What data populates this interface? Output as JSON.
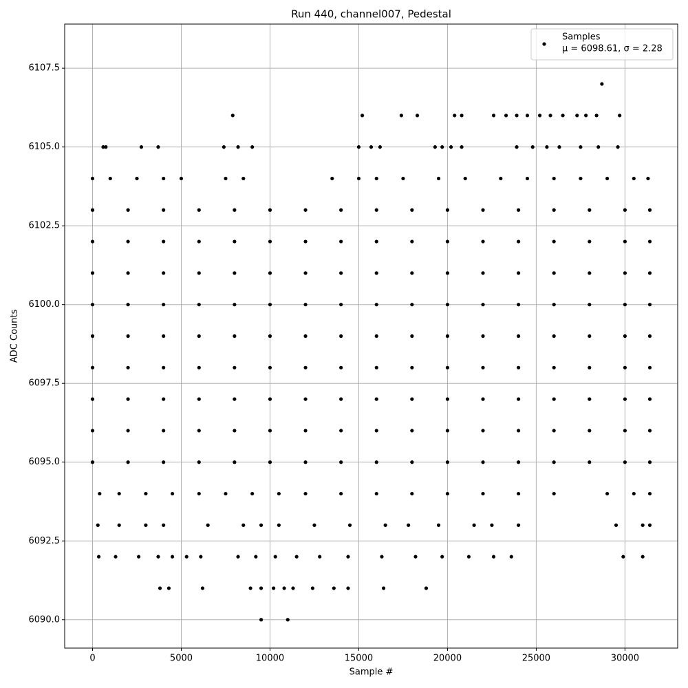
{
  "chart_data": {
    "type": "scatter",
    "title": "Run 440, channel007, Pedestal",
    "x_label": "Sample #",
    "y_label": "ADC Counts",
    "grid": true,
    "legend_position": "upper right",
    "legend_note": "μ = 6098.61, σ = 2.28",
    "xlim": [
      -1570,
      32970
    ],
    "ylim": [
      6089.1,
      6108.9
    ],
    "xticks": [
      0,
      5000,
      10000,
      15000,
      20000,
      25000,
      30000
    ],
    "yticks": [
      {
        "value": 6090,
        "label": "6090.0"
      },
      {
        "value": 6092.5,
        "label": "6092.5"
      },
      {
        "value": 6095,
        "label": "6095.0"
      },
      {
        "value": 6097.5,
        "label": "6097.5"
      },
      {
        "value": 6100,
        "label": "6100.0"
      },
      {
        "value": 6102.5,
        "label": "6102.5"
      },
      {
        "value": 6105,
        "label": "6105.0"
      },
      {
        "value": 6107.5,
        "label": "6107.5"
      }
    ],
    "series": [
      {
        "name": "Samples",
        "color": "#000000",
        "x": [
          0,
          2000,
          4000,
          6000,
          8000,
          10000,
          12000,
          14000,
          16000,
          18000,
          20000,
          22000,
          24000,
          26000,
          28000,
          30000,
          31400,
          0,
          2000,
          4000,
          6000,
          8000,
          10000,
          12000,
          14000,
          16000,
          18000,
          20000,
          22000,
          24000,
          26000,
          28000,
          30000,
          31400,
          0,
          2000,
          4000,
          6000,
          8000,
          10000,
          12000,
          14000,
          16000,
          18000,
          20000,
          22000,
          24000,
          26000,
          28000,
          30000,
          31400,
          0,
          2000,
          4000,
          6000,
          8000,
          10000,
          12000,
          14000,
          16000,
          18000,
          20000,
          22000,
          24000,
          26000,
          28000,
          30000,
          31400,
          0,
          2000,
          4000,
          6000,
          8000,
          10000,
          12000,
          14000,
          16000,
          18000,
          20000,
          22000,
          24000,
          26000,
          28000,
          30000,
          31400,
          0,
          2000,
          4000,
          6000,
          8000,
          10000,
          12000,
          14000,
          16000,
          18000,
          20000,
          22000,
          24000,
          26000,
          28000,
          30000,
          31400,
          0,
          2000,
          4000,
          6000,
          8000,
          10000,
          12000,
          14000,
          16000,
          18000,
          20000,
          22000,
          24000,
          26000,
          28000,
          30000,
          31400,
          0,
          2000,
          4000,
          6000,
          8000,
          10000,
          12000,
          14000,
          16000,
          18000,
          20000,
          22000,
          24000,
          26000,
          28000,
          30000,
          31400,
          0,
          2000,
          4000,
          6000,
          8000,
          10000,
          12000,
          14000,
          16000,
          18000,
          20000,
          22000,
          24000,
          26000,
          28000,
          30000,
          31400,
          0,
          1000,
          2500,
          4000,
          5000,
          7500,
          8500,
          13500,
          15000,
          16000,
          17500,
          19500,
          21000,
          23000,
          24500,
          26000,
          27500,
          29000,
          30500,
          31300,
          400,
          1500,
          3000,
          4500,
          6000,
          7500,
          9000,
          10500,
          12000,
          14000,
          16000,
          18000,
          20000,
          22000,
          24000,
          26000,
          29000,
          30500,
          31400,
          300,
          1500,
          3000,
          4000,
          6500,
          8500,
          9500,
          10500,
          12500,
          14500,
          16500,
          17800,
          19500,
          21500,
          22500,
          24000,
          29500,
          31000,
          31400,
          350,
          1300,
          2600,
          3700,
          4500,
          5300,
          6100,
          8200,
          9200,
          10300,
          11500,
          12800,
          14400,
          16300,
          18200,
          19700,
          21200,
          22600,
          23600,
          29900,
          31000,
          3800,
          4300,
          6200,
          8900,
          9500,
          10200,
          10800,
          11300,
          12400,
          13600,
          14400,
          16400,
          18800,
          9500,
          11000,
          600,
          750,
          2750,
          3700,
          7400,
          8200,
          9000,
          15000,
          15700,
          16200,
          19300,
          19700,
          20200,
          20800,
          23900,
          24800,
          25600,
          26300,
          27500,
          28500,
          29600,
          7900,
          15200,
          17400,
          18300,
          20400,
          20800,
          22600,
          23300,
          23900,
          24500,
          25200,
          25800,
          26500,
          27300,
          27800,
          28400,
          29700,
          28700
        ],
        "values": [
          6095,
          6095,
          6095,
          6095,
          6095,
          6095,
          6095,
          6095,
          6095,
          6095,
          6095,
          6095,
          6095,
          6095,
          6095,
          6095,
          6095,
          6096,
          6096,
          6096,
          6096,
          6096,
          6096,
          6096,
          6096,
          6096,
          6096,
          6096,
          6096,
          6096,
          6096,
          6096,
          6096,
          6096,
          6097,
          6097,
          6097,
          6097,
          6097,
          6097,
          6097,
          6097,
          6097,
          6097,
          6097,
          6097,
          6097,
          6097,
          6097,
          6097,
          6097,
          6098,
          6098,
          6098,
          6098,
          6098,
          6098,
          6098,
          6098,
          6098,
          6098,
          6098,
          6098,
          6098,
          6098,
          6098,
          6098,
          6098,
          6099,
          6099,
          6099,
          6099,
          6099,
          6099,
          6099,
          6099,
          6099,
          6099,
          6099,
          6099,
          6099,
          6099,
          6099,
          6099,
          6099,
          6100,
          6100,
          6100,
          6100,
          6100,
          6100,
          6100,
          6100,
          6100,
          6100,
          6100,
          6100,
          6100,
          6100,
          6100,
          6100,
          6100,
          6101,
          6101,
          6101,
          6101,
          6101,
          6101,
          6101,
          6101,
          6101,
          6101,
          6101,
          6101,
          6101,
          6101,
          6101,
          6101,
          6101,
          6102,
          6102,
          6102,
          6102,
          6102,
          6102,
          6102,
          6102,
          6102,
          6102,
          6102,
          6102,
          6102,
          6102,
          6102,
          6102,
          6102,
          6103,
          6103,
          6103,
          6103,
          6103,
          6103,
          6103,
          6103,
          6103,
          6103,
          6103,
          6103,
          6103,
          6103,
          6103,
          6103,
          6103,
          6104,
          6104,
          6104,
          6104,
          6104,
          6104,
          6104,
          6104,
          6104,
          6104,
          6104,
          6104,
          6104,
          6104,
          6104,
          6104,
          6104,
          6104,
          6104,
          6104,
          6094,
          6094,
          6094,
          6094,
          6094,
          6094,
          6094,
          6094,
          6094,
          6094,
          6094,
          6094,
          6094,
          6094,
          6094,
          6094,
          6094,
          6094,
          6094,
          6093,
          6093,
          6093,
          6093,
          6093,
          6093,
          6093,
          6093,
          6093,
          6093,
          6093,
          6093,
          6093,
          6093,
          6093,
          6093,
          6093,
          6093,
          6093,
          6092,
          6092,
          6092,
          6092,
          6092,
          6092,
          6092,
          6092,
          6092,
          6092,
          6092,
          6092,
          6092,
          6092,
          6092,
          6092,
          6092,
          6092,
          6092,
          6092,
          6092,
          6091,
          6091,
          6091,
          6091,
          6091,
          6091,
          6091,
          6091,
          6091,
          6091,
          6091,
          6091,
          6091,
          6090,
          6090,
          6105,
          6105,
          6105,
          6105,
          6105,
          6105,
          6105,
          6105,
          6105,
          6105,
          6105,
          6105,
          6105,
          6105,
          6105,
          6105,
          6105,
          6105,
          6105,
          6105,
          6105,
          6106,
          6106,
          6106,
          6106,
          6106,
          6106,
          6106,
          6106,
          6106,
          6106,
          6106,
          6106,
          6106,
          6106,
          6106,
          6106,
          6106,
          6107
        ]
      }
    ]
  }
}
